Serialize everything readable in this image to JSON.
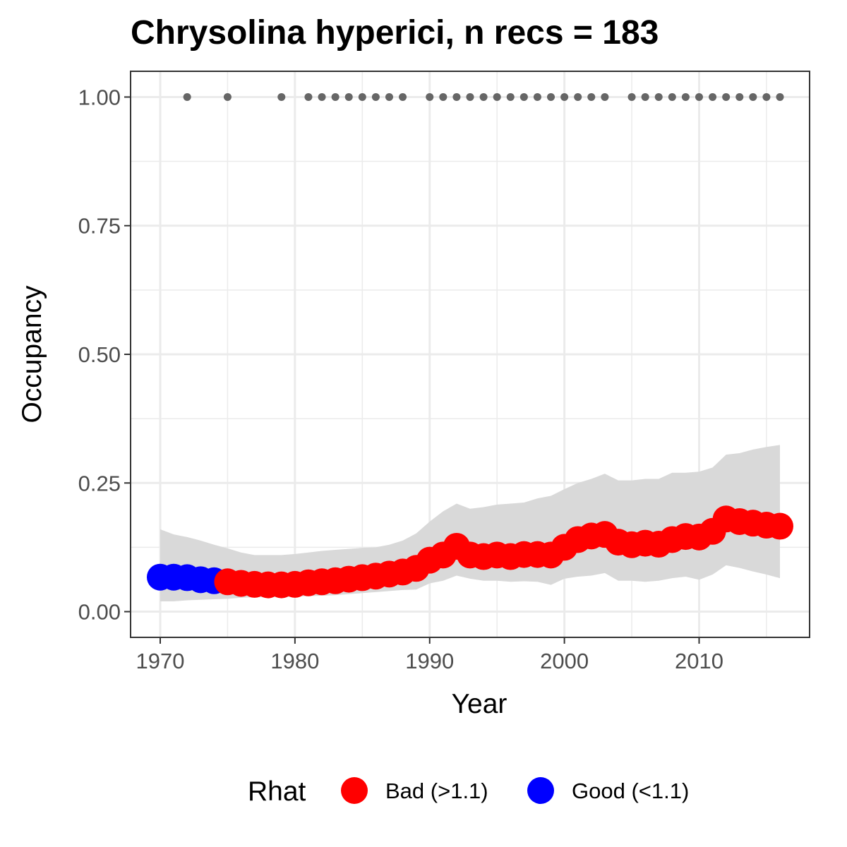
{
  "chart_data": {
    "type": "scatter",
    "title": "Chrysolina hyperici, n recs = 183",
    "xlabel": "Year",
    "ylabel": "Occupancy",
    "xlim": [
      1967.8,
      2018.2
    ],
    "ylim": [
      -0.05,
      1.05
    ],
    "x_ticks": [
      1970,
      1980,
      1990,
      2000,
      2010
    ],
    "y_ticks": [
      0.0,
      0.25,
      0.5,
      0.75,
      1.0
    ],
    "y_tick_labels": [
      "0.00",
      "0.25",
      "0.50",
      "0.75",
      "1.00"
    ],
    "grid": true,
    "legend_position": "bottom",
    "legend": {
      "title": "Rhat",
      "entries": [
        {
          "label": "Bad (>1.1)",
          "color": "#ff0000"
        },
        {
          "label": "Good (<1.1)",
          "color": "#0000ff"
        }
      ]
    },
    "colors": {
      "bad": "#ff0000",
      "good": "#0000ff",
      "ribbon": "#d9d9d9",
      "record_points": "#666666",
      "grid": "#ebebeb",
      "panel_border": "#333333"
    },
    "years": [
      1970,
      1971,
      1972,
      1973,
      1974,
      1975,
      1976,
      1977,
      1978,
      1979,
      1980,
      1981,
      1982,
      1983,
      1984,
      1985,
      1986,
      1987,
      1988,
      1989,
      1990,
      1991,
      1992,
      1993,
      1994,
      1995,
      1996,
      1997,
      1998,
      1999,
      2000,
      2001,
      2002,
      2003,
      2004,
      2005,
      2006,
      2007,
      2008,
      2009,
      2010,
      2011,
      2012,
      2013,
      2014,
      2015,
      2016
    ],
    "occupancy_mean": [
      0.067,
      0.067,
      0.066,
      0.062,
      0.06,
      0.058,
      0.055,
      0.053,
      0.052,
      0.052,
      0.053,
      0.056,
      0.058,
      0.06,
      0.063,
      0.066,
      0.069,
      0.073,
      0.077,
      0.084,
      0.1,
      0.11,
      0.127,
      0.11,
      0.107,
      0.11,
      0.107,
      0.111,
      0.111,
      0.11,
      0.125,
      0.14,
      0.147,
      0.15,
      0.135,
      0.13,
      0.133,
      0.131,
      0.14,
      0.146,
      0.145,
      0.156,
      0.18,
      0.175,
      0.172,
      0.168,
      0.166
    ],
    "lower_ci": [
      0.02,
      0.02,
      0.022,
      0.023,
      0.024,
      0.025,
      0.027,
      0.028,
      0.028,
      0.028,
      0.029,
      0.03,
      0.031,
      0.032,
      0.034,
      0.036,
      0.038,
      0.04,
      0.042,
      0.043,
      0.055,
      0.06,
      0.07,
      0.064,
      0.06,
      0.06,
      0.058,
      0.059,
      0.058,
      0.052,
      0.064,
      0.068,
      0.07,
      0.075,
      0.06,
      0.06,
      0.058,
      0.06,
      0.065,
      0.068,
      0.062,
      0.072,
      0.09,
      0.085,
      0.078,
      0.072,
      0.065
    ],
    "upper_ci": [
      0.16,
      0.15,
      0.145,
      0.138,
      0.13,
      0.123,
      0.115,
      0.11,
      0.11,
      0.11,
      0.112,
      0.115,
      0.118,
      0.12,
      0.122,
      0.124,
      0.125,
      0.13,
      0.138,
      0.152,
      0.175,
      0.195,
      0.21,
      0.2,
      0.203,
      0.208,
      0.21,
      0.212,
      0.22,
      0.225,
      0.238,
      0.25,
      0.258,
      0.268,
      0.255,
      0.255,
      0.258,
      0.258,
      0.27,
      0.27,
      0.272,
      0.28,
      0.305,
      0.308,
      0.315,
      0.32,
      0.324
    ],
    "rhat_status": [
      "Good",
      "Good",
      "Good",
      "Good",
      "Good",
      "Bad",
      "Bad",
      "Bad",
      "Bad",
      "Bad",
      "Bad",
      "Bad",
      "Bad",
      "Bad",
      "Bad",
      "Bad",
      "Bad",
      "Bad",
      "Bad",
      "Bad",
      "Bad",
      "Bad",
      "Bad",
      "Bad",
      "Bad",
      "Bad",
      "Bad",
      "Bad",
      "Bad",
      "Bad",
      "Bad",
      "Bad",
      "Bad",
      "Bad",
      "Bad",
      "Bad",
      "Bad",
      "Bad",
      "Bad",
      "Bad",
      "Bad",
      "Bad",
      "Bad",
      "Bad",
      "Bad",
      "Bad",
      "Bad"
    ],
    "record_years": [
      1972,
      1975,
      1979,
      1981,
      1982,
      1983,
      1984,
      1985,
      1986,
      1987,
      1988,
      1990,
      1991,
      1992,
      1993,
      1994,
      1995,
      1996,
      1997,
      1998,
      1999,
      2000,
      2001,
      2002,
      2003,
      2005,
      2006,
      2007,
      2008,
      2009,
      2010,
      2011,
      2012,
      2013,
      2014,
      2015,
      2016
    ],
    "record_value": 1.0
  }
}
